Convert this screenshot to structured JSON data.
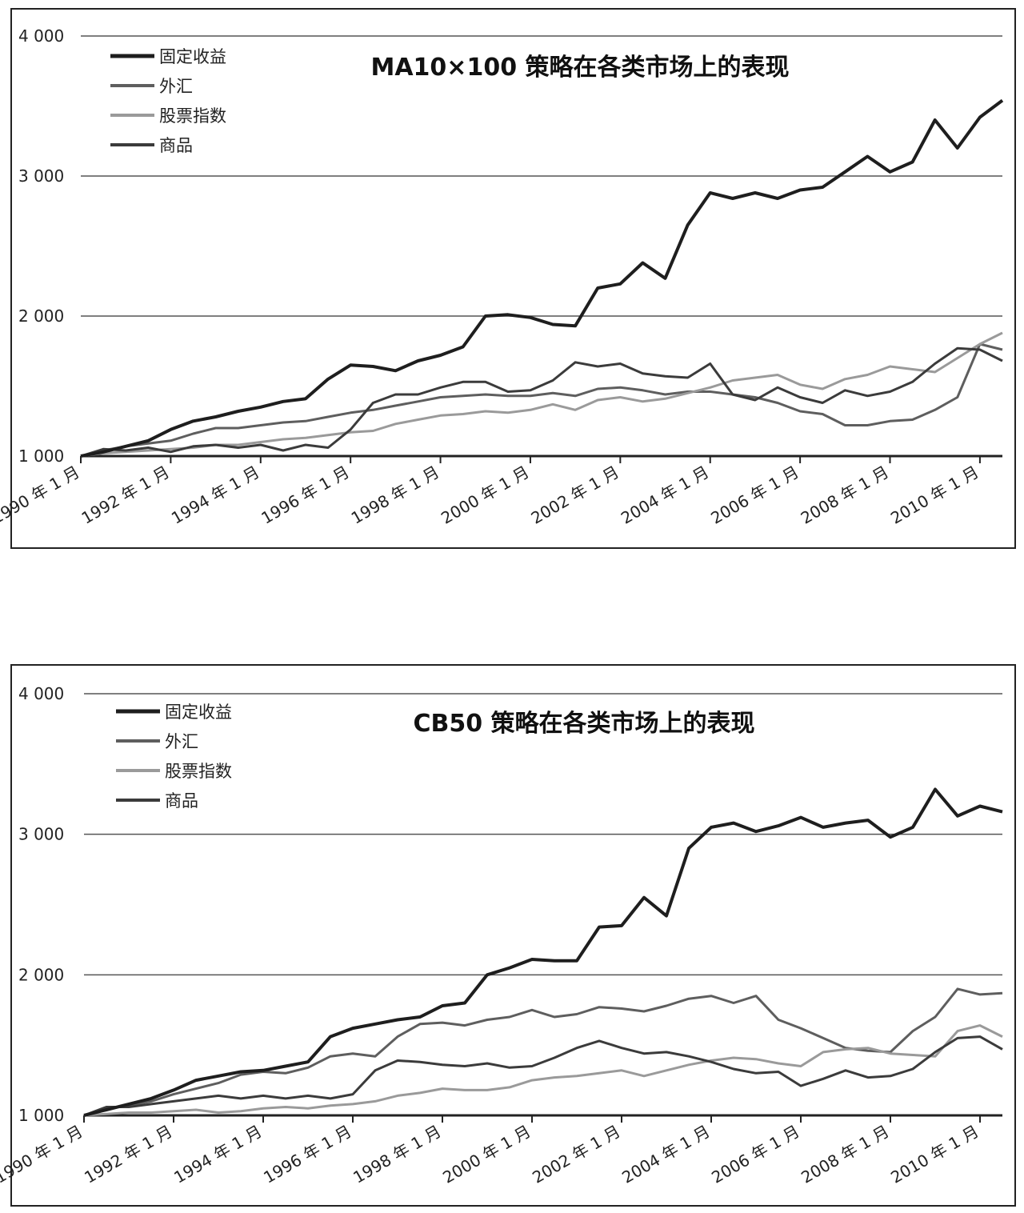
{
  "chart_data": [
    {
      "type": "line",
      "title": "MA10×100 策略在各类市场上的表现",
      "yticks": [
        "1 000",
        "2 000",
        "3 000",
        "4 000"
      ],
      "xticks": [
        "1990 年 1 月",
        "1992 年 1 月",
        "1994 年 1 月",
        "1996 年 1 月",
        "1998 年 1 月",
        "2000 年 1 月",
        "2002 年 1 月",
        "2004 年 1 月",
        "2006 年 1 月",
        "2008 年 1 月",
        "2010 年 1 月"
      ],
      "ylim": [
        1000,
        4000
      ],
      "xlim": [
        1990.0,
        2010.5
      ],
      "grid": true,
      "legend": "top-left",
      "series": [
        {
          "name": "固定收益",
          "color": "#1e1e1e",
          "width": 4,
          "x": [
            1990.0,
            1990.5,
            1991.0,
            1991.5,
            1992.0,
            1992.5,
            1993.0,
            1993.5,
            1994.0,
            1994.5,
            1995.0,
            1995.5,
            1996.0,
            1996.5,
            1997.0,
            1997.5,
            1998.0,
            1998.5,
            1999.0,
            1999.5,
            2000.0,
            2000.5,
            2001.0,
            2001.5,
            2002.0,
            2002.5,
            2003.0,
            2003.5,
            2004.0,
            2004.5,
            2005.0,
            2005.5,
            2006.0,
            2006.5,
            2007.0,
            2007.5,
            2008.0,
            2008.5,
            2009.0,
            2009.5,
            2010.0,
            2010.5
          ],
          "y": [
            1000,
            1030,
            1070,
            1110,
            1190,
            1250,
            1280,
            1320,
            1350,
            1390,
            1410,
            1550,
            1650,
            1640,
            1610,
            1680,
            1720,
            1780,
            2000,
            2010,
            1990,
            1940,
            1930,
            2200,
            2230,
            2380,
            2270,
            2650,
            2880,
            2840,
            2880,
            2840,
            2900,
            2920,
            3030,
            3140,
            3030,
            3100,
            3400,
            3200,
            3420,
            3540
          ]
        },
        {
          "name": "外汇",
          "color": "#5e5e5e",
          "width": 3,
          "x": [
            1990.0,
            1990.5,
            1991.0,
            1991.5,
            1992.0,
            1992.5,
            1993.0,
            1993.5,
            1994.0,
            1994.5,
            1995.0,
            1995.5,
            1996.0,
            1996.5,
            1997.0,
            1997.5,
            1998.0,
            1998.5,
            1999.0,
            1999.5,
            2000.0,
            2000.5,
            2001.0,
            2001.5,
            2002.0,
            2002.5,
            2003.0,
            2003.5,
            2004.0,
            2004.5,
            2005.0,
            2005.5,
            2006.0,
            2006.5,
            2007.0,
            2007.5,
            2008.0,
            2008.5,
            2009.0,
            2009.5,
            2010.0,
            2010.5
          ],
          "y": [
            1000,
            1040,
            1070,
            1090,
            1110,
            1160,
            1200,
            1200,
            1220,
            1240,
            1250,
            1280,
            1310,
            1330,
            1360,
            1390,
            1420,
            1430,
            1440,
            1430,
            1430,
            1450,
            1430,
            1480,
            1490,
            1470,
            1440,
            1460,
            1460,
            1440,
            1420,
            1380,
            1320,
            1300,
            1220,
            1220,
            1250,
            1260,
            1330,
            1420,
            1800,
            1760
          ]
        },
        {
          "name": "股票指数",
          "color": "#9a9a9a",
          "width": 3,
          "x": [
            1990.0,
            1990.5,
            1991.0,
            1991.5,
            1992.0,
            1992.5,
            1993.0,
            1993.5,
            1994.0,
            1994.5,
            1995.0,
            1995.5,
            1996.0,
            1996.5,
            1997.0,
            1997.5,
            1998.0,
            1998.5,
            1999.0,
            1999.5,
            2000.0,
            2000.5,
            2001.0,
            2001.5,
            2002.0,
            2002.5,
            2003.0,
            2003.5,
            2004.0,
            2004.5,
            2005.0,
            2005.5,
            2006.0,
            2006.5,
            2007.0,
            2007.5,
            2008.0,
            2008.5,
            2009.0,
            2009.5,
            2010.0,
            2010.5
          ],
          "y": [
            1000,
            1020,
            1030,
            1040,
            1050,
            1060,
            1080,
            1080,
            1100,
            1120,
            1130,
            1150,
            1170,
            1180,
            1230,
            1260,
            1290,
            1300,
            1320,
            1310,
            1330,
            1370,
            1330,
            1400,
            1420,
            1390,
            1410,
            1450,
            1490,
            1540,
            1560,
            1580,
            1510,
            1480,
            1550,
            1580,
            1640,
            1620,
            1600,
            1700,
            1800,
            1880
          ]
        },
        {
          "name": "商品",
          "color": "#3b3b3b",
          "width": 3,
          "x": [
            1990.0,
            1990.5,
            1991.0,
            1991.5,
            1992.0,
            1992.5,
            1993.0,
            1993.5,
            1994.0,
            1994.5,
            1995.0,
            1995.5,
            1996.0,
            1996.5,
            1997.0,
            1997.5,
            1998.0,
            1998.5,
            1999.0,
            1999.5,
            2000.0,
            2000.5,
            2001.0,
            2001.5,
            2002.0,
            2002.5,
            2003.0,
            2003.5,
            2004.0,
            2004.5,
            2005.0,
            2005.5,
            2006.0,
            2006.5,
            2007.0,
            2007.5,
            2008.0,
            2008.5,
            2009.0,
            2009.5,
            2010.0,
            2010.5
          ],
          "y": [
            1000,
            1050,
            1040,
            1060,
            1030,
            1070,
            1080,
            1060,
            1080,
            1040,
            1080,
            1060,
            1190,
            1380,
            1440,
            1440,
            1490,
            1530,
            1530,
            1460,
            1470,
            1540,
            1670,
            1640,
            1660,
            1590,
            1570,
            1560,
            1660,
            1440,
            1400,
            1490,
            1420,
            1380,
            1470,
            1430,
            1460,
            1530,
            1660,
            1770,
            1760,
            1680
          ]
        }
      ]
    },
    {
      "type": "line",
      "title": "CB50 策略在各类市场上的表现",
      "yticks": [
        "1 000",
        "2 000",
        "3 000",
        "4 000"
      ],
      "xticks": [
        "1990 年 1 月",
        "1992 年 1 月",
        "1994 年 1 月",
        "1996 年 1 月",
        "1998 年 1 月",
        "2000 年 1 月",
        "2002 年 1 月",
        "2004 年 1 月",
        "2006 年 1 月",
        "2008 年 1 月",
        "2010 年 1 月"
      ],
      "ylim": [
        1000,
        4000
      ],
      "xlim": [
        1990.0,
        2010.5
      ],
      "grid": true,
      "legend": "top-left",
      "series": [
        {
          "name": "固定收益",
          "color": "#1e1e1e",
          "width": 4,
          "x": [
            1990.0,
            1990.5,
            1991.0,
            1991.5,
            1992.0,
            1992.5,
            1993.0,
            1993.5,
            1994.0,
            1994.5,
            1995.0,
            1995.5,
            1996.0,
            1996.5,
            1997.0,
            1997.5,
            1998.0,
            1998.5,
            1999.0,
            1999.5,
            2000.0,
            2000.5,
            2001.0,
            2001.5,
            2002.0,
            2002.5,
            2003.0,
            2003.5,
            2004.0,
            2004.5,
            2005.0,
            2005.5,
            2006.0,
            2006.5,
            2007.0,
            2007.5,
            2008.0,
            2008.5,
            2009.0,
            2009.5,
            2010.0,
            2010.5
          ],
          "y": [
            1000,
            1040,
            1080,
            1120,
            1180,
            1250,
            1280,
            1310,
            1320,
            1350,
            1380,
            1560,
            1620,
            1650,
            1680,
            1700,
            1780,
            1800,
            2000,
            2050,
            2110,
            2100,
            2100,
            2340,
            2350,
            2550,
            2420,
            2900,
            3050,
            3080,
            3020,
            3060,
            3120,
            3050,
            3080,
            3100,
            2980,
            3050,
            3320,
            3130,
            3200,
            3160
          ]
        },
        {
          "name": "外汇",
          "color": "#5e5e5e",
          "width": 3,
          "x": [
            1990.0,
            1990.5,
            1991.0,
            1991.5,
            1992.0,
            1992.5,
            1993.0,
            1993.5,
            1994.0,
            1994.5,
            1995.0,
            1995.5,
            1996.0,
            1996.5,
            1997.0,
            1997.5,
            1998.0,
            1998.5,
            1999.0,
            1999.5,
            2000.0,
            2000.5,
            2001.0,
            2001.5,
            2002.0,
            2002.5,
            2003.0,
            2003.5,
            2004.0,
            2004.5,
            2005.0,
            2005.5,
            2006.0,
            2006.5,
            2007.0,
            2007.5,
            2008.0,
            2008.5,
            2009.0,
            2009.5,
            2010.0,
            2010.5
          ],
          "y": [
            1000,
            1050,
            1070,
            1100,
            1150,
            1190,
            1230,
            1290,
            1310,
            1300,
            1340,
            1420,
            1440,
            1420,
            1560,
            1650,
            1660,
            1640,
            1680,
            1700,
            1750,
            1700,
            1720,
            1770,
            1760,
            1740,
            1780,
            1830,
            1850,
            1800,
            1850,
            1680,
            1620,
            1550,
            1480,
            1460,
            1450,
            1600,
            1700,
            1900,
            1860,
            1870
          ]
        },
        {
          "name": "股票指数",
          "color": "#9a9a9a",
          "width": 3,
          "x": [
            1990.0,
            1990.5,
            1991.0,
            1991.5,
            1992.0,
            1992.5,
            1993.0,
            1993.5,
            1994.0,
            1994.5,
            1995.0,
            1995.5,
            1996.0,
            1996.5,
            1997.0,
            1997.5,
            1998.0,
            1998.5,
            1999.0,
            1999.5,
            2000.0,
            2000.5,
            2001.0,
            2001.5,
            2002.0,
            2002.5,
            2003.0,
            2003.5,
            2004.0,
            2004.5,
            2005.0,
            2005.5,
            2006.0,
            2006.5,
            2007.0,
            2007.5,
            2008.0,
            2008.5,
            2009.0,
            2009.5,
            2010.0,
            2010.5
          ],
          "y": [
            1000,
            1010,
            1020,
            1020,
            1030,
            1040,
            1020,
            1030,
            1050,
            1060,
            1050,
            1070,
            1080,
            1100,
            1140,
            1160,
            1190,
            1180,
            1180,
            1200,
            1250,
            1270,
            1280,
            1300,
            1320,
            1280,
            1320,
            1360,
            1390,
            1410,
            1400,
            1370,
            1350,
            1450,
            1470,
            1480,
            1440,
            1430,
            1420,
            1600,
            1640,
            1560
          ]
        },
        {
          "name": "商品",
          "color": "#3b3b3b",
          "width": 3,
          "x": [
            1990.0,
            1990.5,
            1991.0,
            1991.5,
            1992.0,
            1992.5,
            1993.0,
            1993.5,
            1994.0,
            1994.5,
            1995.0,
            1995.5,
            1996.0,
            1996.5,
            1997.0,
            1997.5,
            1998.0,
            1998.5,
            1999.0,
            1999.5,
            2000.0,
            2000.5,
            2001.0,
            2001.5,
            2002.0,
            2002.5,
            2003.0,
            2003.5,
            2004.0,
            2004.5,
            2005.0,
            2005.5,
            2006.0,
            2006.5,
            2007.0,
            2007.5,
            2008.0,
            2008.5,
            2009.0,
            2009.5,
            2010.0,
            2010.5
          ],
          "y": [
            1000,
            1060,
            1060,
            1080,
            1100,
            1120,
            1140,
            1120,
            1140,
            1120,
            1140,
            1120,
            1150,
            1320,
            1390,
            1380,
            1360,
            1350,
            1370,
            1340,
            1350,
            1410,
            1480,
            1530,
            1480,
            1440,
            1450,
            1420,
            1380,
            1330,
            1300,
            1310,
            1210,
            1260,
            1320,
            1270,
            1280,
            1330,
            1450,
            1550,
            1560,
            1470
          ]
        }
      ]
    }
  ]
}
